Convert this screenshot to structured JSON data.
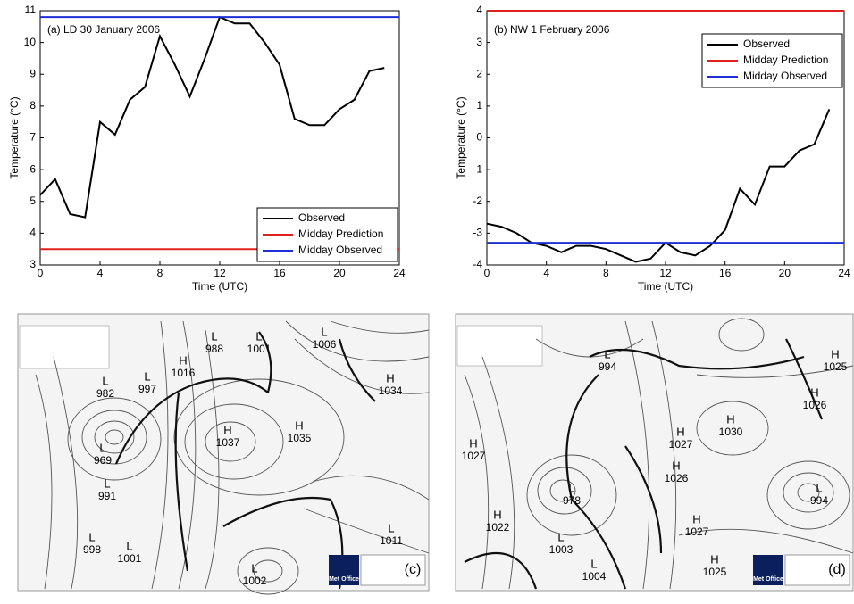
{
  "chart_data": [
    {
      "type": "line",
      "annotation": "(a) LD 30 January 2006",
      "xlabel": "Time (UTC)",
      "ylabel": "Temperature (°C)",
      "xlim": [
        0,
        24
      ],
      "xticks": [
        0,
        4,
        8,
        12,
        16,
        20,
        24
      ],
      "ylim": [
        3,
        11
      ],
      "yticks": [
        3,
        4,
        5,
        6,
        7,
        8,
        9,
        10,
        11
      ],
      "legend": "lower right",
      "series": [
        {
          "name": "Observed",
          "color": "#000000",
          "x": [
            0,
            1,
            2,
            3,
            4,
            5,
            6,
            7,
            8,
            9,
            10,
            11,
            12,
            13,
            14,
            15,
            16,
            17,
            18,
            19,
            20,
            21,
            22,
            23
          ],
          "values": [
            5.2,
            5.7,
            4.6,
            4.5,
            7.5,
            7.1,
            8.2,
            8.6,
            10.2,
            9.3,
            8.3,
            9.5,
            10.8,
            10.6,
            10.6,
            10.0,
            9.3,
            7.6,
            7.4,
            7.4,
            7.9,
            8.2,
            9.1,
            9.2
          ]
        },
        {
          "name": "Midday Prediction",
          "color": "#e0201b",
          "x": [
            0,
            24
          ],
          "values": [
            3.5,
            3.5
          ]
        },
        {
          "name": "Midday Observed",
          "color": "#1f2fd8",
          "x": [
            0,
            24
          ],
          "values": [
            10.8,
            10.8
          ]
        }
      ]
    },
    {
      "type": "line",
      "annotation": "(b) NW 1 February 2006",
      "xlabel": "Time (UTC)",
      "ylabel": "Temperature (°C)",
      "xlim": [
        0,
        24
      ],
      "xticks": [
        0,
        4,
        8,
        12,
        16,
        20,
        24
      ],
      "ylim": [
        -4,
        4
      ],
      "yticks": [
        -4,
        -3,
        -2,
        -1,
        0,
        1,
        2,
        3,
        4
      ],
      "legend": "upper right",
      "series": [
        {
          "name": "Observed",
          "color": "#000000",
          "x": [
            0,
            1,
            2,
            3,
            4,
            5,
            6,
            7,
            8,
            9,
            10,
            11,
            12,
            13,
            14,
            15,
            16,
            17,
            18,
            19,
            20,
            21,
            22,
            23
          ],
          "values": [
            -2.7,
            -2.8,
            -3.0,
            -3.3,
            -3.4,
            -3.6,
            -3.4,
            -3.4,
            -3.5,
            -3.7,
            -3.9,
            -3.8,
            -3.3,
            -3.6,
            -3.7,
            -3.4,
            -2.9,
            -1.6,
            -2.1,
            -0.9,
            -0.9,
            -0.4,
            -0.2,
            0.9
          ]
        },
        {
          "name": "Midday Prediction",
          "color": "#e0201b",
          "x": [
            0,
            24
          ],
          "values": [
            4.0,
            4.0
          ]
        },
        {
          "name": "Midday Observed",
          "color": "#1f2fd8",
          "x": [
            0,
            24
          ],
          "values": [
            -3.3,
            -3.3
          ]
        }
      ]
    }
  ],
  "maps": [
    {
      "label": "(c)",
      "logo": "Met Office",
      "centres": [
        {
          "kind": "L",
          "pressure": 988
        },
        {
          "kind": "L",
          "pressure": 1001
        },
        {
          "kind": "L",
          "pressure": 1006
        },
        {
          "kind": "H",
          "pressure": 1016
        },
        {
          "kind": "L",
          "pressure": 982
        },
        {
          "kind": "L",
          "pressure": 997
        },
        {
          "kind": "H",
          "pressure": 1034
        },
        {
          "kind": "H",
          "pressure": 1035
        },
        {
          "kind": "H",
          "pressure": 1037
        },
        {
          "kind": "L",
          "pressure": 969
        },
        {
          "kind": "L",
          "pressure": 991
        },
        {
          "kind": "L",
          "pressure": 998
        },
        {
          "kind": "L",
          "pressure": 1001
        },
        {
          "kind": "L",
          "pressure": 1011
        },
        {
          "kind": "L",
          "pressure": 1002
        }
      ]
    },
    {
      "label": "(d)",
      "logo": "Met Office",
      "centres": [
        {
          "kind": "L",
          "pressure": 994
        },
        {
          "kind": "H",
          "pressure": 1025
        },
        {
          "kind": "H",
          "pressure": 1026
        },
        {
          "kind": "H",
          "pressure": 1030
        },
        {
          "kind": "H",
          "pressure": 1027
        },
        {
          "kind": "H",
          "pressure": 1027
        },
        {
          "kind": "H",
          "pressure": 1026
        },
        {
          "kind": "L",
          "pressure": 978
        },
        {
          "kind": "H",
          "pressure": 1022
        },
        {
          "kind": "L",
          "pressure": 994
        },
        {
          "kind": "H",
          "pressure": 1027
        },
        {
          "kind": "L",
          "pressure": 1003
        },
        {
          "kind": "L",
          "pressure": 1004
        },
        {
          "kind": "H",
          "pressure": 1025
        }
      ]
    }
  ]
}
